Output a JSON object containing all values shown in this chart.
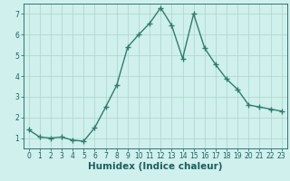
{
  "xlabel": "Humidex (Indice chaleur)",
  "x": [
    0,
    1,
    2,
    3,
    4,
    5,
    6,
    7,
    8,
    9,
    10,
    11,
    12,
    13,
    14,
    15,
    16,
    17,
    18,
    19,
    20,
    21,
    22,
    23
  ],
  "y": [
    1.4,
    1.05,
    1.0,
    1.05,
    0.9,
    0.85,
    1.5,
    2.5,
    3.55,
    5.4,
    6.0,
    6.55,
    7.3,
    6.45,
    4.85,
    7.0,
    5.35,
    4.55,
    3.85,
    3.35,
    2.6,
    2.5,
    2.4,
    2.3
  ],
  "line_color": "#2e7d6e",
  "marker": "+",
  "markersize": 4,
  "linewidth": 1.0,
  "bg_color": "#cff0ec",
  "grid_color": "#aad4cc",
  "ylim": [
    0.5,
    7.5
  ],
  "xlim": [
    -0.5,
    23.5
  ],
  "yticks": [
    1,
    2,
    3,
    4,
    5,
    6,
    7
  ],
  "xticks": [
    0,
    1,
    2,
    3,
    4,
    5,
    6,
    7,
    8,
    9,
    10,
    11,
    12,
    13,
    14,
    15,
    16,
    17,
    18,
    19,
    20,
    21,
    22,
    23
  ],
  "tick_fontsize": 5.5,
  "xlabel_fontsize": 7.5,
  "tick_color": "#1e5f5f",
  "label_color": "#1e5f5f",
  "markeredgewidth": 1.0
}
